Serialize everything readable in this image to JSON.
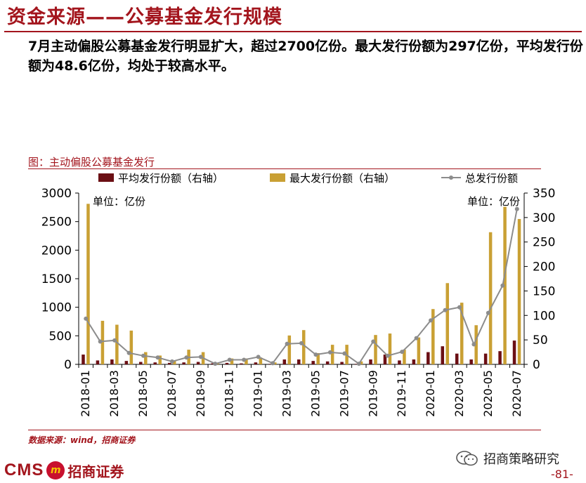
{
  "header": {
    "title": "资金来源——公募基金发行规模",
    "summary": "7月主动偏股公募基金发行明显扩大，超过2700亿份。最大发行份额为297亿份，平均发行份额为48.6亿份，均处于较高水平。"
  },
  "figure": {
    "caption": "图：主动偏股公募基金发行",
    "source": "数据来源：wind，招商证券"
  },
  "footer": {
    "logo_text": "CMS",
    "logo_mark": "m",
    "logo_cn": "招商证券",
    "wechat_label": "招商策略研究",
    "page": "-81-"
  },
  "colors": {
    "accent": "#a3151d",
    "avg_bar": "#6b0f14",
    "max_bar": "#c9a034",
    "total_line": "#8c8c8c"
  },
  "chart_data": {
    "type": "bar",
    "title": "主动偏股公募基金发行",
    "unit_left": "单位：亿份",
    "unit_right": "单位：亿份",
    "categories": [
      "2018-01",
      "2018-02",
      "2018-03",
      "2018-04",
      "2018-05",
      "2018-06",
      "2018-07",
      "2018-08",
      "2018-09",
      "2018-10",
      "2018-11",
      "2018-12",
      "2019-01",
      "2019-02",
      "2019-03",
      "2019-04",
      "2019-05",
      "2019-06",
      "2019-07",
      "2019-08",
      "2019-09",
      "2019-10",
      "2019-11",
      "2019-12",
      "2020-01",
      "2020-02",
      "2020-03",
      "2020-04",
      "2020-05",
      "2020-06",
      "2020-07"
    ],
    "x_tick_labels": [
      "2018-01",
      "2018-03",
      "2018-05",
      "2018-07",
      "2018-09",
      "2018-11",
      "2019-01",
      "2019-03",
      "2019-05",
      "2019-07",
      "2019-09",
      "2019-11",
      "2020-01",
      "2020-03",
      "2020-05",
      "2020-07"
    ],
    "ylim_left": [
      0,
      3000
    ],
    "yticks_left": [
      0,
      500,
      1000,
      1500,
      2000,
      2500,
      3000
    ],
    "ylim_right": [
      0,
      350
    ],
    "yticks_right": [
      0,
      50,
      100,
      150,
      200,
      250,
      300,
      350
    ],
    "series": [
      {
        "name": "平均发行份额（右轴）",
        "type": "bar",
        "axis": "right",
        "values": [
          20,
          8,
          10,
          7,
          5,
          4,
          3,
          4,
          5,
          2,
          3,
          2,
          4,
          1,
          10,
          10,
          7,
          6,
          5,
          1,
          10,
          20,
          8,
          10,
          25,
          37,
          22,
          10,
          22,
          27,
          48.6
        ]
      },
      {
        "name": "最大发行份额（右轴）",
        "type": "bar",
        "axis": "right",
        "values": [
          328,
          89,
          81,
          69,
          25,
          18,
          7,
          30,
          25,
          3,
          12,
          12,
          14,
          4,
          59,
          70,
          23,
          40,
          40,
          6,
          60,
          63,
          30,
          55,
          113,
          166,
          126,
          80,
          270,
          322,
          297
        ]
      },
      {
        "name": "总发行份额",
        "type": "line",
        "axis": "left",
        "values": [
          800,
          400,
          420,
          200,
          150,
          120,
          50,
          120,
          130,
          10,
          80,
          80,
          130,
          20,
          360,
          370,
          170,
          210,
          190,
          10,
          400,
          150,
          220,
          460,
          770,
          950,
          1000,
          350,
          900,
          1380,
          2720
        ]
      }
    ],
    "legend_position": "top",
    "grid": false
  }
}
